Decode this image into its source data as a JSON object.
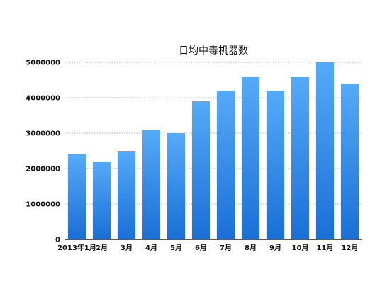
{
  "chart_data": {
    "type": "bar",
    "title": "日均中毒机器数",
    "xlabel": "",
    "ylabel": "",
    "categories": [
      "2013年1月",
      "2月",
      "3月",
      "4月",
      "5月",
      "6月",
      "7月",
      "8月",
      "9月",
      "10月",
      "11月",
      "12月"
    ],
    "values": [
      2400000,
      2200000,
      2500000,
      3100000,
      3000000,
      3900000,
      4200000,
      4600000,
      4200000,
      4600000,
      5000000,
      4400000
    ],
    "ylim": [
      0,
      5000000
    ],
    "yticks": [
      0,
      1000000,
      2000000,
      3000000,
      4000000,
      5000000
    ],
    "ytick_labels": [
      "0",
      "1000000",
      "2000000",
      "3000000",
      "4000000",
      "5000000"
    ],
    "grid": true,
    "legend": "none",
    "colors": {
      "bar_top": "#55aaf8",
      "bar_bottom": "#1a6fd6"
    }
  }
}
